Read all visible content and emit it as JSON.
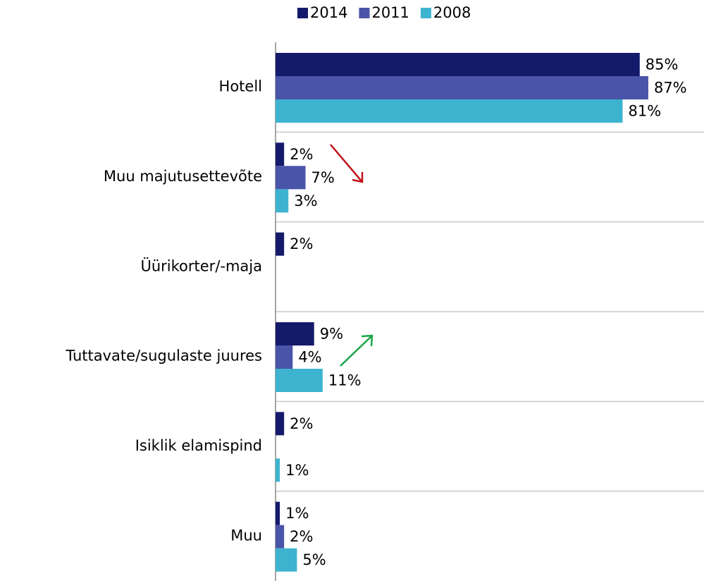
{
  "chart_data": {
    "type": "hbar",
    "categories": [
      "Hotell",
      "Muu majutusettevõte",
      "Üürikorter/-maja",
      "Tuttavate/sugulaste juures",
      "Isiklik elamispind",
      "Muu"
    ],
    "series": [
      {
        "name": "2014",
        "color": "#141b6b",
        "values": [
          85,
          2,
          2,
          9,
          2,
          1
        ],
        "value_labels": [
          "85%",
          "2%",
          "2%",
          "9%",
          "2%",
          "1%"
        ]
      },
      {
        "name": "2011",
        "color": "#4a54a8",
        "values": [
          87,
          7,
          null,
          4,
          null,
          2
        ],
        "value_labels": [
          "87%",
          "7%",
          null,
          "4%",
          null,
          "2%"
        ]
      },
      {
        "name": "2008",
        "color": "#3db3cf",
        "values": [
          81,
          3,
          null,
          11,
          1,
          5
        ],
        "value_labels": [
          "81%",
          "3%",
          null,
          "11%",
          "1%",
          "5%"
        ]
      }
    ],
    "xlim": [
      0,
      100
    ],
    "legend": "top"
  }
}
